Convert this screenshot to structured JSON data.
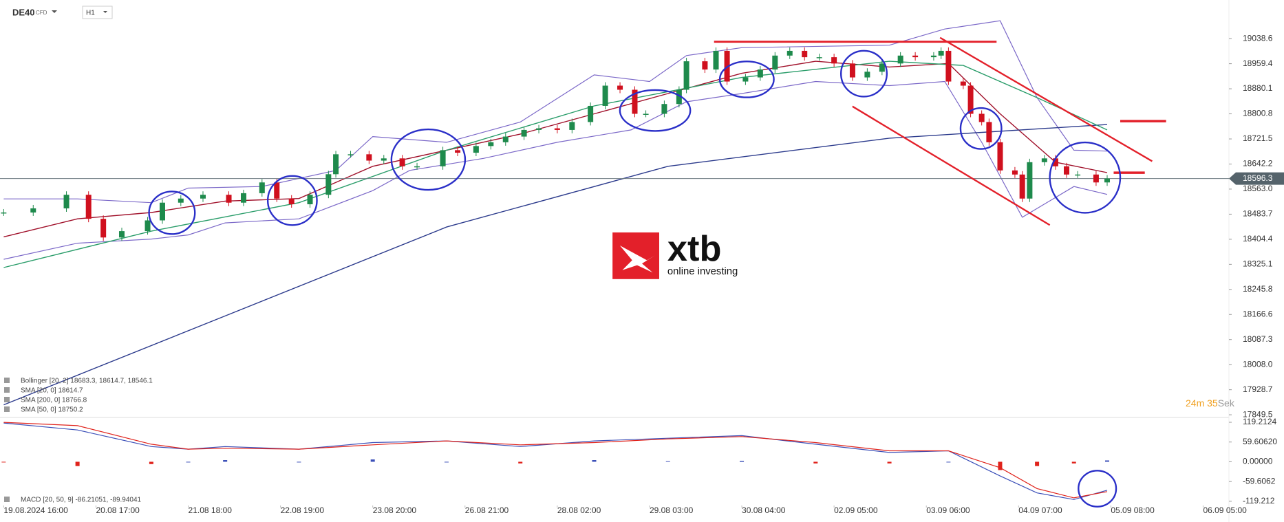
{
  "chart_data": {
    "type": "candlestick",
    "symbol": "DE40",
    "instrument_type": "CFD",
    "timeframe": "H1",
    "xlim": [
      -1,
      332
    ],
    "xticks": [
      {
        "value": 0,
        "label": "19.08.2024 16:00"
      },
      {
        "value": 25,
        "label": "20.08 17:00"
      },
      {
        "value": 50,
        "label": "21.08 18:00"
      },
      {
        "value": 75,
        "label": "22.08 19:00"
      },
      {
        "value": 100,
        "label": "23.08 20:00"
      },
      {
        "value": 125,
        "label": "26.08 21:00"
      },
      {
        "value": 150,
        "label": "28.08 02:00"
      },
      {
        "value": 175,
        "label": "29.08 03:00"
      },
      {
        "value": 200,
        "label": "30.08 04:00"
      },
      {
        "value": 225,
        "label": "02.09 05:00"
      },
      {
        "value": 250,
        "label": "03.09 06:00"
      },
      {
        "value": 275,
        "label": "04.09 07:00"
      },
      {
        "value": 300,
        "label": "05.09 08:00"
      },
      {
        "value": 325,
        "label": "06.09 05:00"
      }
    ],
    "ylim": [
      17841,
      19139
    ],
    "yticks": [
      19038.6,
      18959.4,
      18880.1,
      18800.8,
      18721.5,
      18642.2,
      {
        "value": 18563,
        "label": "18563.0"
      },
      18483.7,
      18404.4,
      18325.1,
      18245.8,
      18166.6,
      18087.3,
      {
        "value": 18008,
        "label": "18008.0"
      },
      17928.7,
      17849.5
    ],
    "grid": false,
    "last_price": 18596.3,
    "up_color": "#1e8a4c",
    "down_color": "#d0101e",
    "x": [
      0,
      8,
      17,
      23,
      27,
      32,
      39,
      43,
      48,
      54,
      61,
      65,
      70,
      74,
      78,
      83,
      88,
      90,
      94,
      99,
      103,
      108,
      112,
      119,
      123,
      128,
      132,
      136,
      141,
      145,
      150,
      154,
      159,
      163,
      167,
      171,
      174,
      179,
      183,
      185,
      190,
      193,
      196,
      201,
      205,
      209,
      213,
      217,
      221,
      225,
      230,
      234,
      238,
      243,
      247,
      252,
      254,
      256,
      260,
      262,
      265,
      267,
      270,
      274,
      276,
      278,
      282,
      285,
      288,
      291,
      296,
      299
    ],
    "close": [
      18489,
      18502,
      18545,
      18469,
      18410,
      18430,
      18464,
      18520,
      18533,
      18545,
      18520,
      18550,
      18584,
      18533,
      18515,
      18545,
      18610,
      18673,
      18673,
      18653,
      18660,
      18635,
      18635,
      18686,
      18678,
      18699,
      18711,
      18729,
      18750,
      18755,
      18750,
      18775,
      18826,
      18890,
      18877,
      18801,
      18801,
      18832,
      18877,
      18967,
      18941,
      19000,
      18903,
      18916,
      18941,
      18985,
      19000,
      18980,
      18980,
      18960,
      18916,
      18934,
      18960,
      18985,
      18980,
      18985,
      19000,
      18903,
      18890,
      18801,
      18775,
      18711,
      18622,
      18609,
      18533,
      18648,
      18660,
      18635,
      18609,
      18609,
      18584,
      18596.3
    ],
    "bollinger": {
      "name": "Bollinger  [20, 2]  18683.3,  18614.7,  18546.1",
      "color": "#7b68c8",
      "x_upper": [
        0,
        20,
        40,
        50,
        70,
        90,
        100,
        120,
        140,
        160,
        175,
        185,
        200,
        240,
        255,
        270,
        280,
        290,
        299
      ],
      "upper": [
        18532,
        18532,
        18520,
        18566,
        18571,
        18622,
        18729,
        18711,
        18775,
        18924,
        18903,
        18985,
        19010,
        19018,
        19069,
        19095,
        18852,
        18686,
        18683
      ],
      "x_lower": [
        0,
        20,
        40,
        50,
        60,
        80,
        100,
        110,
        130,
        150,
        170,
        185,
        200,
        220,
        240,
        255,
        265,
        276,
        290,
        299
      ],
      "lower": [
        18341,
        18392,
        18405,
        18418,
        18456,
        18469,
        18558,
        18622,
        18660,
        18711,
        18750,
        18839,
        18865,
        18903,
        18890,
        18903,
        18711,
        18474,
        18571,
        18546
      ]
    },
    "series": [
      {
        "name": "SMA  [20, 0]  18614.7",
        "color": "#a0102a",
        "x": [
          0,
          20,
          40,
          60,
          80,
          100,
          120,
          140,
          160,
          180,
          200,
          220,
          240,
          256,
          270,
          285,
          299
        ],
        "values": [
          18412,
          18469,
          18489,
          18525,
          18533,
          18635,
          18686,
          18737,
          18801,
          18865,
          18929,
          18967,
          18949,
          18960,
          18801,
          18648,
          18615
        ]
      },
      {
        "name": "SMA  [200, 0]  18766.8",
        "color": "#2b3a8c",
        "x": [
          0,
          60,
          120,
          180,
          240,
          299
        ],
        "values": [
          17881,
          18162,
          18443,
          18635,
          18724,
          18767
        ]
      },
      {
        "name": "SMA  [50, 0]  18750.2",
        "color": "#2a9d6a",
        "x": [
          0,
          40,
          80,
          120,
          160,
          200,
          240,
          260,
          280,
          299
        ],
        "values": [
          18315,
          18430,
          18520,
          18686,
          18826,
          18916,
          18967,
          18954,
          18852,
          18750
        ]
      }
    ],
    "macd": {
      "name": "MACD  [20, 50, 9]  -86.21051,  -89.94041",
      "ylim": [
        -132,
        127.5
      ],
      "yticks": [
        119.2124,
        {
          "value": 59.6062,
          "label": "59.60620"
        },
        {
          "value": 0,
          "label": "0.00000"
        },
        -59.6062,
        -119.212
      ],
      "x": [
        0,
        20,
        40,
        50,
        60,
        80,
        100,
        120,
        140,
        160,
        180,
        200,
        220,
        240,
        256,
        270,
        280,
        290,
        299
      ],
      "macd_color": "#3b4fb8",
      "signal_color": "#e0231c",
      "macd": [
        117,
        96,
        46,
        38,
        46,
        38,
        58,
        63,
        46,
        63,
        71,
        79,
        53,
        28,
        33,
        -43,
        -94,
        -114,
        -86
      ],
      "signal": [
        119,
        109,
        53,
        38,
        41,
        38,
        51,
        63,
        51,
        58,
        69,
        76,
        58,
        33,
        33,
        -18,
        -81,
        -109,
        -90
      ],
      "histogram": [
        -2,
        -13,
        -7,
        0,
        5,
        0,
        7,
        0,
        -5,
        5,
        2,
        3,
        -5,
        -5,
        0,
        -25,
        -13,
        -5,
        4
      ]
    },
    "countdown": [
      "24",
      "m",
      "35",
      "Sek"
    ],
    "logo": {
      "name": "xtb",
      "tagline": "online investing"
    }
  }
}
